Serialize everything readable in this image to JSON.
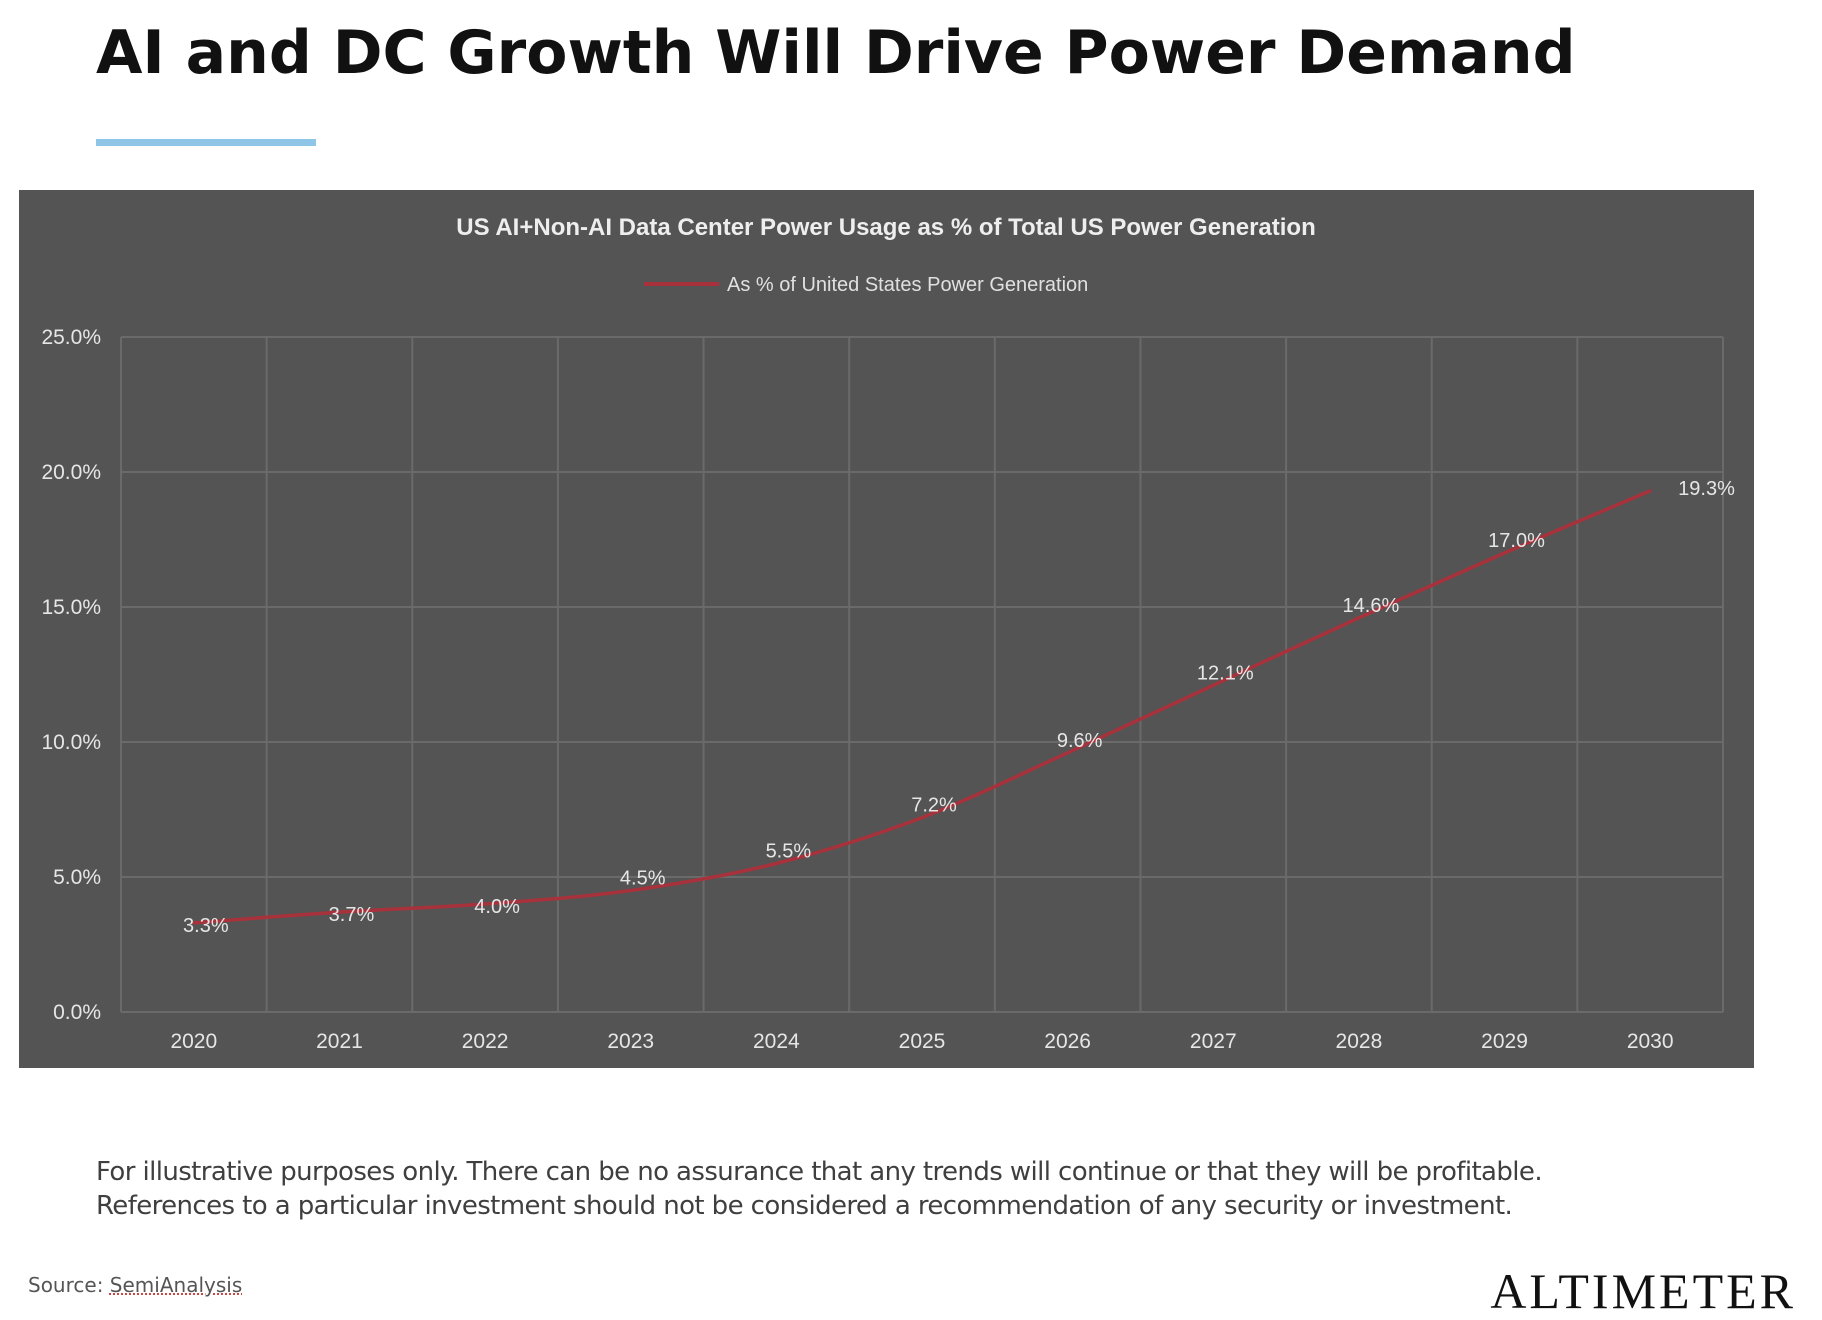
{
  "slide": {
    "title": "AI and DC Growth Will Drive Power Demand",
    "accent_color": "#8fc6e8",
    "disclaimer_line1": "For illustrative purposes only. There can be no assurance that any trends will continue or that they will be profitable.",
    "disclaimer_line2": "References to a particular investment should not be considered a recommendation of any security or investment.",
    "source_prefix": "Source: ",
    "source_name": "SemiAnalysis",
    "brand": "ALTIMETER"
  },
  "chart_data": {
    "type": "line",
    "title": "US AI+Non-AI  Data Center Power Usage as % of Total US Power Generation",
    "legend": "As % of United States Power Generation",
    "legend_position": "top-center",
    "categories": [
      "2020",
      "2021",
      "2022",
      "2023",
      "2024",
      "2025",
      "2026",
      "2027",
      "2028",
      "2029",
      "2030"
    ],
    "series": [
      {
        "name": "As % of United States Power Generation",
        "values": [
          3.3,
          3.7,
          4.0,
          4.5,
          5.5,
          7.2,
          9.6,
          12.1,
          14.6,
          17.0,
          19.3
        ],
        "labels": [
          "3.3%",
          "3.7%",
          "4.0%",
          "4.5%",
          "5.5%",
          "7.2%",
          "9.6%",
          "12.1%",
          "14.6%",
          "17.0%",
          "19.3%"
        ],
        "color": "#a8323c"
      }
    ],
    "yticks": [
      0,
      5,
      10,
      15,
      20,
      25
    ],
    "ytick_labels": [
      "0.0%",
      "5.0%",
      "10.0%",
      "15.0%",
      "20.0%",
      "25.0%"
    ],
    "ylim": [
      0,
      25
    ],
    "xlabel": "",
    "ylabel": "",
    "grid": true,
    "background": "#545454",
    "grid_color": "#6a6a6a",
    "text_color": "#e6e6e6"
  }
}
